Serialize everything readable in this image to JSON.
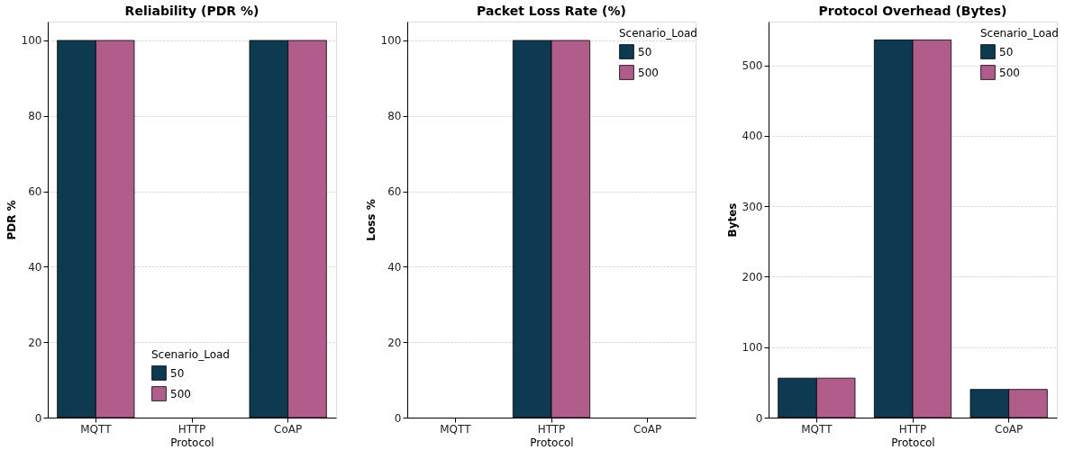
{
  "chart_data": [
    {
      "type": "bar",
      "title": "Reliability (PDR %)",
      "xlabel": "Protocol",
      "ylabel": "PDR %",
      "categories": [
        "MQTT",
        "HTTP",
        "CoAP"
      ],
      "legend_title": "Scenario_Load",
      "legend": "bottom",
      "grid": "y",
      "ylim": [
        0,
        105
      ],
      "yticks": [
        0,
        20,
        40,
        60,
        80,
        100
      ],
      "series": [
        {
          "name": "50",
          "color": "#0d3a50",
          "values": [
            100,
            0,
            100
          ]
        },
        {
          "name": "500",
          "color": "#b05d8c",
          "values": [
            100,
            0,
            100
          ]
        }
      ]
    },
    {
      "type": "bar",
      "title": "Packet Loss Rate (%)",
      "xlabel": "Protocol",
      "ylabel": "Loss %",
      "categories": [
        "MQTT",
        "HTTP",
        "CoAP"
      ],
      "legend_title": "Scenario_Load",
      "legend": "top right",
      "grid": "y",
      "ylim": [
        0,
        105
      ],
      "yticks": [
        0,
        20,
        40,
        60,
        80,
        100
      ],
      "series": [
        {
          "name": "50",
          "color": "#0d3a50",
          "values": [
            0,
            100,
            0
          ]
        },
        {
          "name": "500",
          "color": "#b05d8c",
          "values": [
            0,
            100,
            0
          ]
        }
      ]
    },
    {
      "type": "bar",
      "title": "Protocol Overhead (Bytes)",
      "xlabel": "Protocol",
      "ylabel": "Bytes",
      "categories": [
        "MQTT",
        "HTTP",
        "CoAP"
      ],
      "legend_title": "Scenario_Load",
      "legend": "top right",
      "grid": "y",
      "ylim": [
        0,
        562
      ],
      "yticks": [
        0,
        100,
        200,
        300,
        400,
        500
      ],
      "series": [
        {
          "name": "50",
          "color": "#0d3a50",
          "values": [
            56,
            536,
            40
          ]
        },
        {
          "name": "500",
          "color": "#b05d8c",
          "values": [
            56,
            536,
            40
          ]
        }
      ]
    }
  ]
}
